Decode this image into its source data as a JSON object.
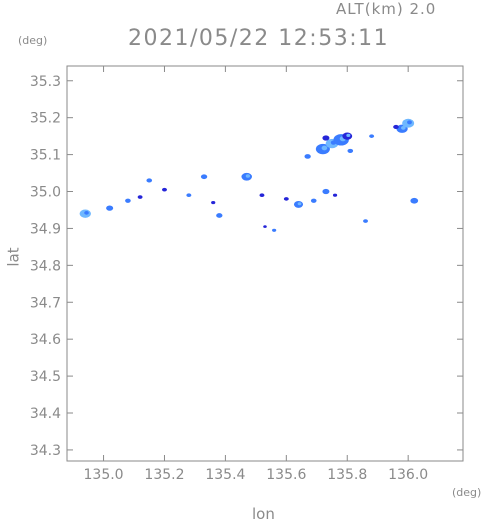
{
  "header": {
    "altitude_label": "ALT(km) 2.0",
    "timestamp": "2021/05/22 12:53:11"
  },
  "axes": {
    "y_unit": "(deg)",
    "x_unit": "(deg)",
    "ylabel": "lat",
    "xlabel": "lon"
  },
  "chart_data": {
    "type": "scatter",
    "title": "",
    "xlabel": "lon",
    "ylabel": "lat",
    "xlim": [
      134.88,
      136.18
    ],
    "ylim": [
      34.27,
      35.34
    ],
    "grid": false,
    "xticks": [
      135.0,
      135.2,
      135.4,
      135.6,
      135.8,
      136.0
    ],
    "yticks": [
      34.3,
      34.4,
      34.5,
      34.6,
      34.7,
      34.8,
      34.9,
      35.0,
      35.1,
      35.2,
      35.3
    ],
    "colors": {
      "light": "#6fb8ff",
      "mid": "#3a7cff",
      "dark": "#2525d8",
      "axis": "#8a8a8a"
    },
    "series": [
      {
        "values": [
          {
            "x": 134.94,
            "y": 34.94,
            "r": 1.6,
            "level": "light"
          },
          {
            "x": 135.02,
            "y": 34.955,
            "r": 1.0,
            "level": "mid"
          },
          {
            "x": 135.08,
            "y": 34.975,
            "r": 0.8,
            "level": "mid"
          },
          {
            "x": 135.12,
            "y": 34.985,
            "r": 0.7,
            "level": "dark"
          },
          {
            "x": 135.15,
            "y": 35.03,
            "r": 0.8,
            "level": "mid"
          },
          {
            "x": 135.2,
            "y": 35.005,
            "r": 0.7,
            "level": "dark"
          },
          {
            "x": 135.28,
            "y": 34.99,
            "r": 0.7,
            "level": "mid"
          },
          {
            "x": 135.33,
            "y": 35.04,
            "r": 0.9,
            "level": "mid"
          },
          {
            "x": 135.36,
            "y": 34.97,
            "r": 0.6,
            "level": "dark"
          },
          {
            "x": 135.38,
            "y": 34.935,
            "r": 0.9,
            "level": "mid"
          },
          {
            "x": 135.47,
            "y": 35.04,
            "r": 1.5,
            "level": "mid"
          },
          {
            "x": 135.52,
            "y": 34.99,
            "r": 0.7,
            "level": "dark"
          },
          {
            "x": 135.53,
            "y": 34.905,
            "r": 0.5,
            "level": "dark"
          },
          {
            "x": 135.56,
            "y": 34.895,
            "r": 0.6,
            "level": "mid"
          },
          {
            "x": 135.6,
            "y": 34.98,
            "r": 0.7,
            "level": "dark"
          },
          {
            "x": 135.64,
            "y": 34.965,
            "r": 1.3,
            "level": "mid"
          },
          {
            "x": 135.69,
            "y": 34.975,
            "r": 0.8,
            "level": "mid"
          },
          {
            "x": 135.73,
            "y": 35.0,
            "r": 1.0,
            "level": "mid"
          },
          {
            "x": 135.76,
            "y": 34.99,
            "r": 0.6,
            "level": "dark"
          },
          {
            "x": 135.86,
            "y": 34.92,
            "r": 0.7,
            "level": "mid"
          },
          {
            "x": 136.02,
            "y": 34.975,
            "r": 1.1,
            "level": "mid"
          },
          {
            "x": 135.67,
            "y": 35.095,
            "r": 0.9,
            "level": "mid"
          },
          {
            "x": 135.72,
            "y": 35.115,
            "r": 2.0,
            "level": "mid"
          },
          {
            "x": 135.75,
            "y": 35.13,
            "r": 1.8,
            "level": "light"
          },
          {
            "x": 135.78,
            "y": 35.14,
            "r": 2.2,
            "level": "mid"
          },
          {
            "x": 135.73,
            "y": 35.145,
            "r": 1.0,
            "level": "dark"
          },
          {
            "x": 135.8,
            "y": 35.15,
            "r": 1.4,
            "level": "dark"
          },
          {
            "x": 135.81,
            "y": 35.11,
            "r": 0.8,
            "level": "mid"
          },
          {
            "x": 135.88,
            "y": 35.15,
            "r": 0.7,
            "level": "mid"
          },
          {
            "x": 135.98,
            "y": 35.17,
            "r": 1.6,
            "level": "mid"
          },
          {
            "x": 136.0,
            "y": 35.185,
            "r": 1.7,
            "level": "light"
          },
          {
            "x": 135.96,
            "y": 35.175,
            "r": 0.8,
            "level": "dark"
          }
        ]
      }
    ]
  }
}
